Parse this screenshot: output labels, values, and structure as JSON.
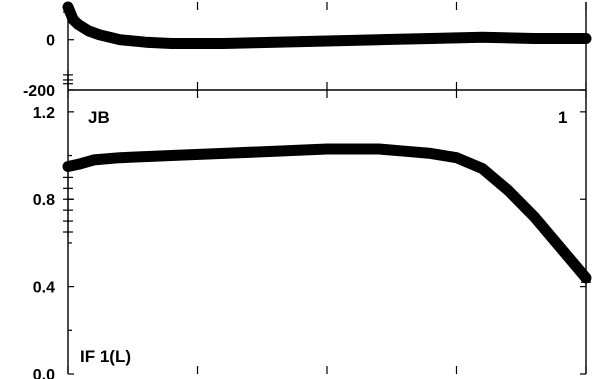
{
  "chart_data": [
    {
      "type": "line",
      "panel": "upper",
      "ylim": [
        -200,
        150
      ],
      "y_ticks": [
        0,
        -200
      ],
      "y_tick_labels": [
        "0",
        "-200"
      ],
      "x_ticks": [
        0,
        0.25,
        0.5,
        0.75,
        1.0
      ],
      "grid": false,
      "series": [
        {
          "x": [
            0,
            0.01,
            0.02,
            0.04,
            0.06,
            0.1,
            0.15,
            0.2,
            0.3,
            0.4,
            0.5,
            0.6,
            0.7,
            0.8,
            0.9,
            1.0
          ],
          "y": [
            130,
            80,
            60,
            35,
            20,
            0,
            -10,
            -15,
            -15,
            -10,
            -5,
            0,
            5,
            10,
            5,
            5
          ]
        }
      ],
      "scatter_markers": [
        {
          "x": 0,
          "y": 110
        },
        {
          "x": 0,
          "y": -140
        },
        {
          "x": 0,
          "y": -160
        },
        {
          "x": 0,
          "y": -175
        },
        {
          "x": 1.0,
          "y": 5
        }
      ],
      "annotations": [
        {
          "text": "JB",
          "position": "lower-left"
        },
        {
          "text": "1",
          "position": "lower-right"
        }
      ]
    },
    {
      "type": "line",
      "panel": "lower",
      "ylim": [
        0.0,
        1.3
      ],
      "y_ticks": [
        0.0,
        0.4,
        0.8,
        1.2
      ],
      "y_tick_labels": [
        "0.0",
        "0.4",
        "0.8",
        "1.2"
      ],
      "x_ticks": [
        0,
        0.25,
        0.5,
        0.75,
        1.0
      ],
      "grid": false,
      "series": [
        {
          "x": [
            0,
            0.02,
            0.05,
            0.1,
            0.2,
            0.3,
            0.4,
            0.5,
            0.6,
            0.65,
            0.7,
            0.75,
            0.8,
            0.85,
            0.9,
            0.95,
            1.0
          ],
          "y": [
            0.95,
            0.96,
            0.98,
            0.99,
            1.0,
            1.01,
            1.02,
            1.03,
            1.03,
            1.02,
            1.01,
            0.99,
            0.94,
            0.84,
            0.72,
            0.58,
            0.44
          ]
        }
      ],
      "scatter_markers": [
        {
          "x": 0,
          "y": 0.95
        },
        {
          "x": 0,
          "y": 0.9
        },
        {
          "x": 0,
          "y": 0.85
        },
        {
          "x": 0,
          "y": 0.8
        },
        {
          "x": 0,
          "y": 0.75
        },
        {
          "x": 0,
          "y": 0.7
        },
        {
          "x": 0,
          "y": 0.65
        },
        {
          "x": 1.0,
          "y": 0.42
        }
      ],
      "annotations": [
        {
          "text": "IF 1(L)",
          "position": "lower-left"
        }
      ]
    }
  ]
}
